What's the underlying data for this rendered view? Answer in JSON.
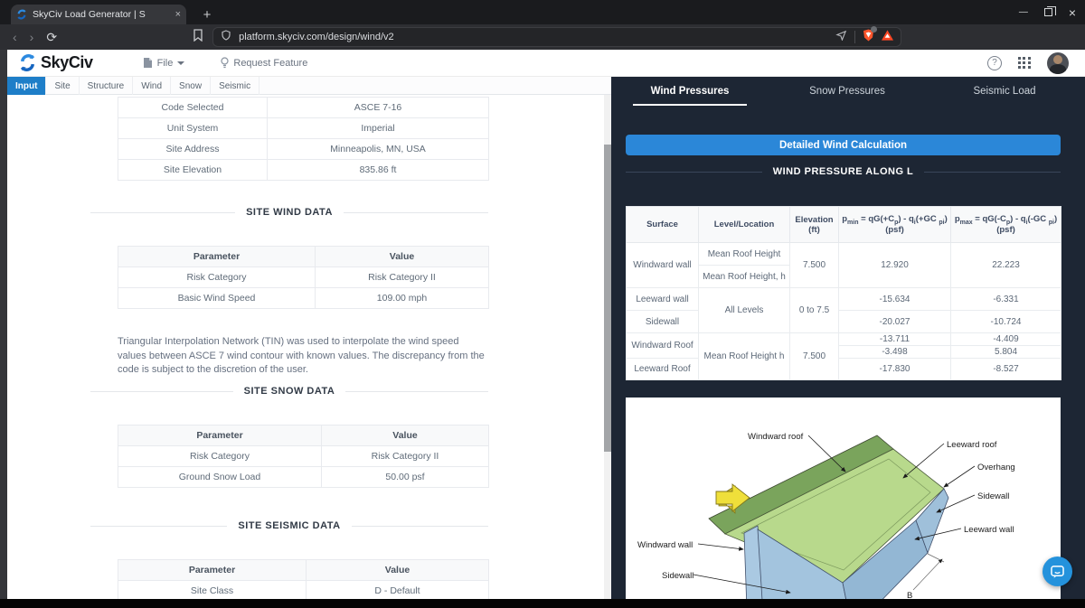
{
  "colors": {
    "accent_blue": "#2b87d8",
    "panel_bg": "#1d2634",
    "active_tab_blue": "#1e7ec8",
    "roof_light_green": "#b8d98c",
    "roof_dark_green": "#7aa45c",
    "wall_blue": "#a3c4de",
    "arrow_yellow": "#efdf3a",
    "brave_shield_orange": "#fb542b"
  },
  "browser": {
    "tab_title": "SkyCiv Load Generator | S",
    "tab_close": "×",
    "new_tab": "+",
    "nav": {
      "back": "‹",
      "forward": "›",
      "reload": "⟳"
    },
    "url": "platform.skyciv.com/design/wind/v2",
    "window": {
      "minimize": "—",
      "close": "×"
    }
  },
  "app_header": {
    "brand": "SkyCiv",
    "file_menu": "File",
    "request_feature": "Request Feature",
    "help": "?"
  },
  "nav_tabs": {
    "items": [
      {
        "label": "Input"
      },
      {
        "label": "Site"
      },
      {
        "label": "Structure"
      },
      {
        "label": "Wind"
      },
      {
        "label": "Snow"
      },
      {
        "label": "Seismic"
      }
    ]
  },
  "report": {
    "site_info_table": {
      "rows": [
        [
          "Code Selected",
          "ASCE 7-16"
        ],
        [
          "Unit System",
          "Imperial"
        ],
        [
          "Site Address",
          "Minneapolis, MN, USA"
        ],
        [
          "Site Elevation",
          "835.86 ft"
        ]
      ]
    },
    "wind_section": {
      "title": "SITE WIND DATA",
      "headers": [
        "Parameter",
        "Value"
      ],
      "rows": [
        [
          "Risk Category",
          "Risk Category II"
        ],
        [
          "Basic Wind Speed",
          "109.00 mph"
        ]
      ]
    },
    "tin_note": "Triangular Interpolation Network (TIN) was used to interpolate the wind speed values between ASCE 7 wind contour with known values. The discrepancy from the code is subject to the discretion of the user.",
    "snow_section": {
      "title": "SITE SNOW DATA",
      "headers": [
        "Parameter",
        "Value"
      ],
      "rows": [
        [
          "Risk Category",
          "Risk Category II"
        ],
        [
          "Ground Snow Load",
          "50.00 psf"
        ]
      ]
    },
    "seismic_section": {
      "title": "SITE SEISMIC DATA",
      "headers": [
        "Parameter",
        "Value"
      ],
      "rows": [
        [
          "Site Class",
          "D - Default"
        ]
      ]
    }
  },
  "results_panel": {
    "tabs": [
      {
        "label": "Wind Pressures"
      },
      {
        "label": "Snow Pressures"
      },
      {
        "label": "Seismic Load"
      }
    ],
    "detailed_button": "Detailed Wind Calculation",
    "section_title": "WIND PRESSURE ALONG L",
    "pressure_table": {
      "col_surface": "Surface",
      "col_level": "Level/Location",
      "col_elev_line1": "Elevation",
      "col_elev_line2": "(ft)",
      "pmin_formula": [
        {
          "t": "p"
        },
        {
          "s": "min"
        },
        {
          "t": " = qG(+C"
        },
        {
          "s": "p"
        },
        {
          "t": ") - q"
        },
        {
          "s": "i"
        },
        {
          "t": "(+GC "
        },
        {
          "s": "pi"
        },
        {
          "t": ")"
        }
      ],
      "pmax_formula": [
        {
          "t": "p"
        },
        {
          "s": "max"
        },
        {
          "t": " = qG(-C"
        },
        {
          "s": "p"
        },
        {
          "t": ") - q"
        },
        {
          "s": "i"
        },
        {
          "t": "(-GC "
        },
        {
          "s": "pi"
        },
        {
          "t": ")"
        }
      ],
      "unit": "(psf)",
      "rows": {
        "windward_wall": {
          "surface": "Windward wall",
          "level_a": "Mean Roof Height",
          "level_b": "Mean Roof Height, h",
          "elev": "7.500",
          "pmin": "12.920",
          "pmax": "22.223"
        },
        "leeward_wall": {
          "surface": "Leeward wall",
          "pmin": "-15.634",
          "pmax": "-6.331"
        },
        "sidewall": {
          "surface": "Sidewall",
          "level": "All Levels",
          "elev": "0 to 7.5",
          "pmin": "-20.027",
          "pmax": "-10.724"
        },
        "windward_roof": {
          "surface": "Windward Roof",
          "level": "Mean Roof Height h",
          "elev": "7.500",
          "pmin_a": "-13.711",
          "pmin_b": "-3.498",
          "pmax_a": "-4.409",
          "pmax_b": "5.804"
        },
        "leeward_roof": {
          "surface": "Leeward Roof",
          "pmin": "-17.830",
          "pmax": "-8.527"
        }
      }
    },
    "diagram": {
      "labels": {
        "windward_roof": "Windward roof",
        "leeward_roof": "Leeward roof",
        "overhang": "Overhang",
        "sidewall_right": "Sidewall",
        "leeward_wall": "Leeward wall",
        "windward_wall": "Windward wall",
        "sidewall_left": "Sidewall",
        "dim_b": "B"
      }
    }
  }
}
